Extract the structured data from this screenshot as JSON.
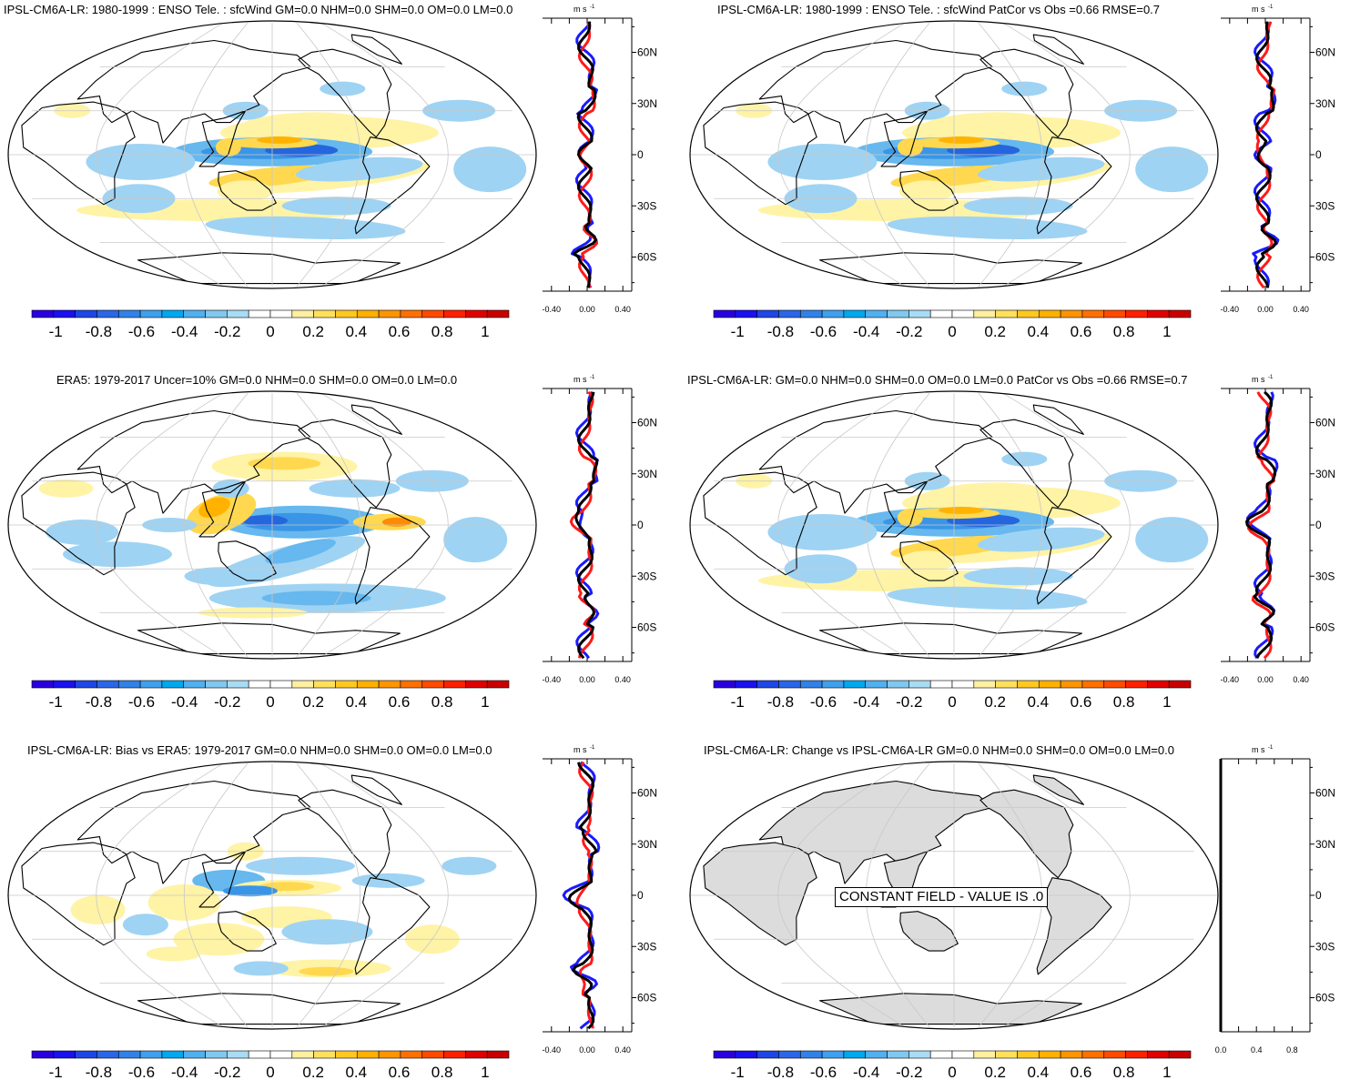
{
  "colorbar": {
    "labels": [
      "-1",
      "-0.8",
      "-0.6",
      "-0.4",
      "-0.2",
      "0",
      "0.2",
      "0.4",
      "0.6",
      "0.8",
      "1"
    ],
    "colors": [
      "#2a00e0",
      "#1a10f0",
      "#1e46e6",
      "#2a66e8",
      "#3182e8",
      "#3ea0ee",
      "#00a8f0",
      "#50b0f0",
      "#80c8f0",
      "#a8dcf4",
      "#ffffff",
      "#ffffff",
      "#fff0a0",
      "#ffe05a",
      "#ffc820",
      "#ffb000",
      "#ff9400",
      "#ff7000",
      "#ff4a00",
      "#ff2000",
      "#e00000",
      "#c80000"
    ]
  },
  "zonal_units": "m s",
  "zonal_units_exp": "-1",
  "lat_labels": [
    "60N",
    "30N",
    "0",
    "30S",
    "60S"
  ],
  "zonal_x_labels": [
    "-0.40",
    "0.00",
    "0.40"
  ],
  "panels": [
    {
      "title": "IPSL-CM6A-LR: 1980-1999 : ENSO Tele. : sfcWind GM=0.0 NHM=0.0 SHM=0.0 OM=0.0 LM=0.0",
      "field": "model",
      "x_labels": [
        "-0.40",
        "0.00",
        "0.40"
      ]
    },
    {
      "title": "IPSL-CM6A-LR: 1980-1999 : ENSO Tele. : sfcWind PatCor vs Obs =0.66 RMSE=0.7",
      "field": "model",
      "x_labels": [
        "-0.40",
        "0.00",
        "0.40"
      ]
    },
    {
      "title": "ERA5: 1979-2017 Uncer=10% GM=0.0 NHM=0.0 SHM=0.0 OM=0.0 LM=0.0",
      "field": "obs",
      "x_labels": [
        "-0.40",
        "0.00",
        "0.40"
      ]
    },
    {
      "title": "IPSL-CM6A-LR: GM=0.0 NHM=0.0 SHM=0.0 OM=0.0 LM=0.0 PatCor vs Obs =0.66 RMSE=0.7",
      "field": "model",
      "x_labels": [
        "-0.40",
        "0.00",
        "0.40"
      ]
    },
    {
      "title": "IPSL-CM6A-LR: Bias vs ERA5: 1979-2017 GM=0.0 NHM=0.0 SHM=0.0 OM=0.0 LM=0.0",
      "field": "bias",
      "x_labels": [
        "-0.40",
        "0.00",
        "0.40"
      ]
    },
    {
      "title": "IPSL-CM6A-LR: Change vs IPSL-CM6A-LR GM=0.0 NHM=0.0 SHM=0.0 OM=0.0 LM=0.0",
      "field": "constant",
      "constant_label": "CONSTANT FIELD - VALUE IS .0",
      "x_labels": [
        "0.0",
        "0.4",
        "0.8"
      ]
    }
  ],
  "chart_data": [
    {
      "type": "heatmap",
      "title": "IPSL-CM6A-LR: 1980-1999 : ENSO Tele. : sfcWind GM=0.0 NHM=0.0 SHM=0.0 OM=0.0 LM=0.0",
      "colorbar_range": [
        -1,
        1
      ],
      "lat_ticks": [
        "60N",
        "30N",
        "0",
        "30S",
        "60S"
      ],
      "zonal_xlim": [
        -0.4,
        0.4
      ]
    },
    {
      "type": "heatmap",
      "title": "IPSL-CM6A-LR: 1980-1999 : ENSO Tele. : sfcWind PatCor vs Obs =0.66 RMSE=0.7",
      "colorbar_range": [
        -1,
        1
      ],
      "lat_ticks": [
        "60N",
        "30N",
        "0",
        "30S",
        "60S"
      ],
      "zonal_xlim": [
        -0.4,
        0.4
      ]
    },
    {
      "type": "heatmap",
      "title": "ERA5: 1979-2017 Uncer=10% GM=0.0 NHM=0.0 SHM=0.0 OM=0.0 LM=0.0",
      "colorbar_range": [
        -1,
        1
      ],
      "lat_ticks": [
        "60N",
        "30N",
        "0",
        "30S",
        "60S"
      ],
      "zonal_xlim": [
        -0.4,
        0.4
      ]
    },
    {
      "type": "heatmap",
      "title": "IPSL-CM6A-LR: GM=0.0 NHM=0.0 SHM=0.0 OM=0.0 LM=0.0 PatCor vs Obs =0.66 RMSE=0.7",
      "colorbar_range": [
        -1,
        1
      ],
      "lat_ticks": [
        "60N",
        "30N",
        "0",
        "30S",
        "60S"
      ],
      "zonal_xlim": [
        -0.4,
        0.4
      ]
    },
    {
      "type": "heatmap",
      "title": "IPSL-CM6A-LR: Bias vs ERA5: 1979-2017 GM=0.0 NHM=0.0 SHM=0.0 OM=0.0 LM=0.0",
      "colorbar_range": [
        -1,
        1
      ],
      "lat_ticks": [
        "60N",
        "30N",
        "0",
        "30S",
        "60S"
      ],
      "zonal_xlim": [
        -0.4,
        0.4
      ]
    },
    {
      "type": "heatmap",
      "title": "IPSL-CM6A-LR: Change vs IPSL-CM6A-LR GM=0.0 NHM=0.0 SHM=0.0 OM=0.0 LM=0.0",
      "colorbar_range": [
        -1,
        1
      ],
      "lat_ticks": [
        "60N",
        "30N",
        "0",
        "30S",
        "60S"
      ],
      "zonal_xlim": [
        0.0,
        1.0
      ],
      "annotation": "CONSTANT FIELD - VALUE IS .0"
    }
  ]
}
